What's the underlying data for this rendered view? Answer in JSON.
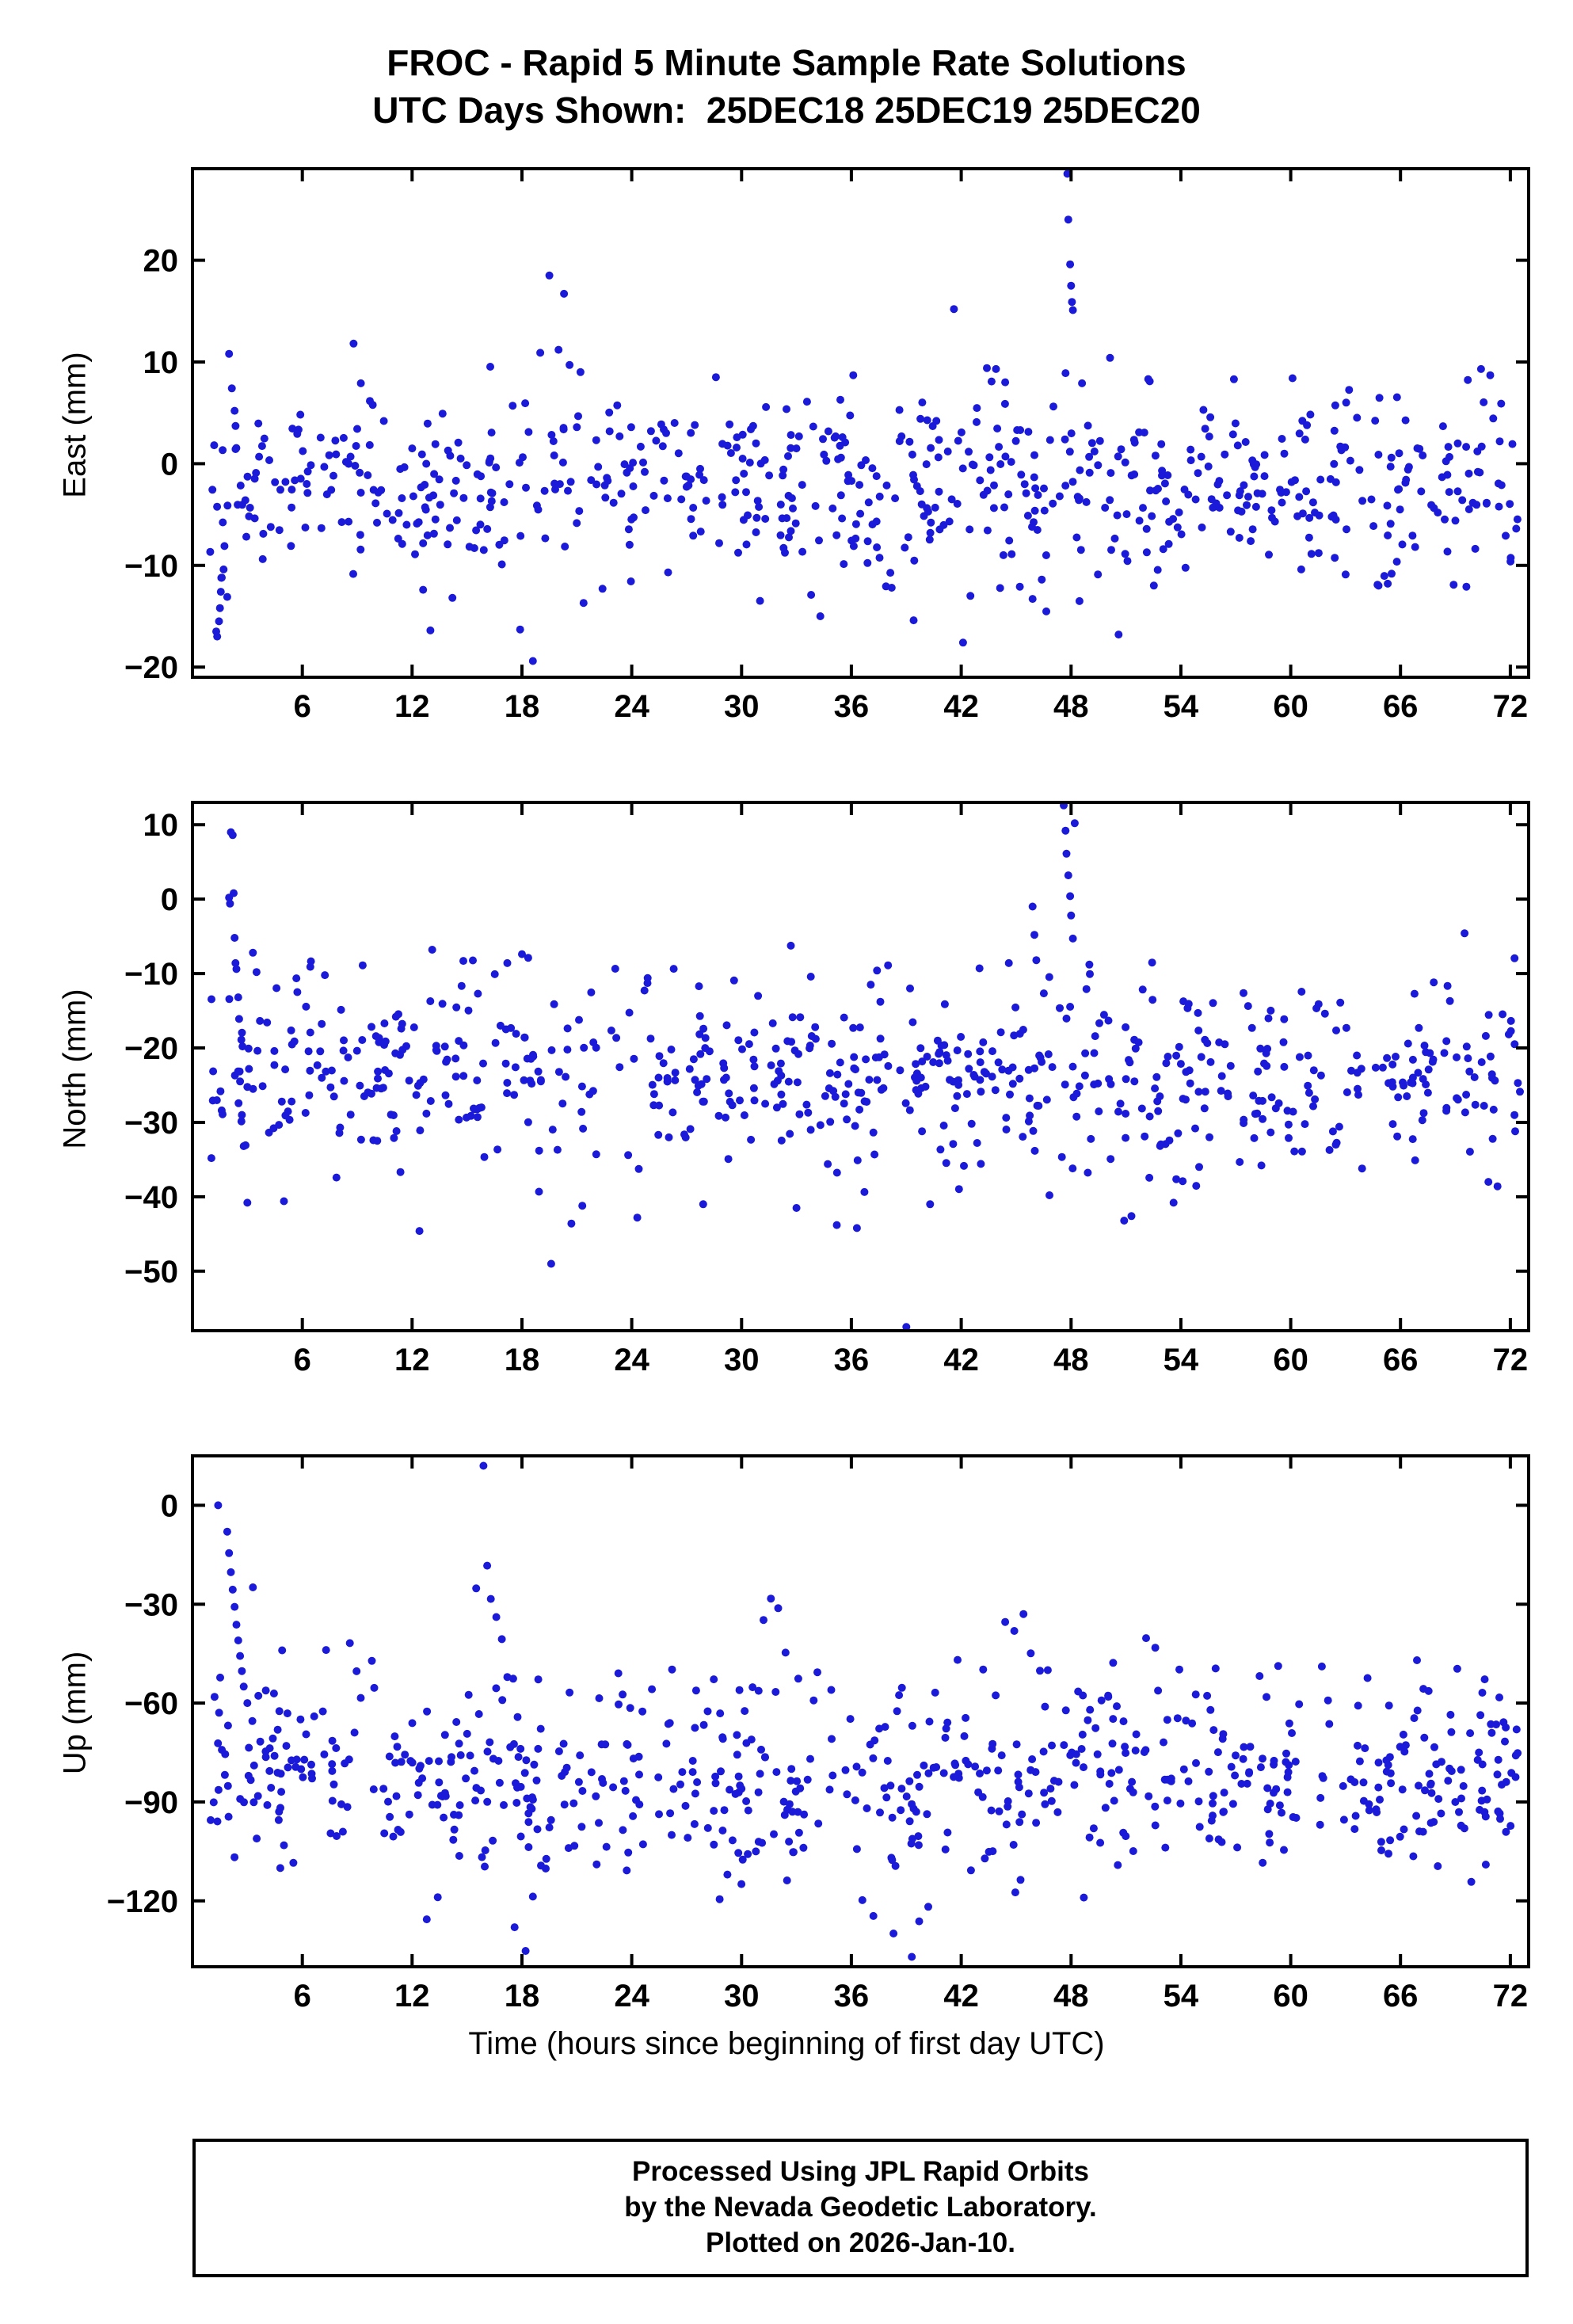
{
  "titles": {
    "line1": "FROC - Rapid 5 Minute Sample Rate Solutions",
    "line2": "UTC Days Shown:  25DEC18 25DEC19 25DEC20"
  },
  "xaxis": {
    "label": "Time (hours since beginning of first day UTC)",
    "ticks": [
      6,
      12,
      18,
      24,
      30,
      36,
      42,
      48,
      54,
      60,
      66,
      72
    ],
    "range": [
      0,
      73
    ]
  },
  "footer": {
    "line1": "Processed Using JPL Rapid Orbits",
    "line2": "by the Nevada Geodetic Laboratory.",
    "line3": "Plotted on 2026-Jan-10."
  },
  "marker": {
    "color": "#1a1ad8",
    "radius": 5
  },
  "chart_data": [
    {
      "type": "scatter",
      "panel": "east",
      "ylabel": "East (mm)",
      "y_range": [
        -21,
        29
      ],
      "y_ticks": [
        -20,
        -10,
        0,
        10,
        20
      ],
      "x_range": [
        0,
        73
      ],
      "x_ticks": [
        6,
        12,
        18,
        24,
        30,
        36,
        42,
        48,
        54,
        60,
        66,
        72
      ],
      "summary": "GPS East component residuals, ~5 min samples over 72 h; bulk of points between -10 and +10 mm around mean -1.8 mm; low streak near hour 2 to -17 mm; spikes to +18.5 near hour 20; large excursion to +28.5 mm near hour 48; low outlier -19.4 at hour 18.6",
      "generator": {
        "seed": 101,
        "n": 660,
        "x_min": 0.9,
        "x_max": 72.6,
        "mean": -1.8,
        "sigma": 4.4,
        "clip": [
          -15,
          11
        ]
      },
      "extra_points": [
        [
          1.3,
          -16.5
        ],
        [
          1.35,
          -17
        ],
        [
          1.45,
          -15.5
        ],
        [
          1.5,
          -14.2
        ],
        [
          1.55,
          -12.6
        ],
        [
          1.6,
          -11.2
        ],
        [
          1.7,
          -10.4
        ],
        [
          1.75,
          -8.1
        ],
        [
          1.9,
          -13.1
        ],
        [
          2.0,
          10.8
        ],
        [
          2.15,
          7.4
        ],
        [
          2.3,
          5.2
        ],
        [
          8.8,
          11.8
        ],
        [
          9.2,
          7.9
        ],
        [
          12.6,
          -12.4
        ],
        [
          13.0,
          -16.4
        ],
        [
          14.2,
          -13.2
        ],
        [
          16.9,
          -9.9
        ],
        [
          17.9,
          -16.3
        ],
        [
          18.6,
          -19.4
        ],
        [
          19.0,
          10.9
        ],
        [
          19.5,
          18.5
        ],
        [
          20.0,
          11.2
        ],
        [
          20.3,
          16.7
        ],
        [
          20.6,
          9.7
        ],
        [
          21.2,
          9.0
        ],
        [
          22.4,
          -12.3
        ],
        [
          28.6,
          8.5
        ],
        [
          33.8,
          -12.9
        ],
        [
          34.3,
          -15.0
        ],
        [
          36.1,
          8.7
        ],
        [
          38.2,
          -12.2
        ],
        [
          39.4,
          -15.4
        ],
        [
          41.6,
          15.2
        ],
        [
          42.1,
          -17.6
        ],
        [
          42.5,
          -13.0
        ],
        [
          43.4,
          9.4
        ],
        [
          43.9,
          9.3
        ],
        [
          44.4,
          8.0
        ],
        [
          45.2,
          -12.1
        ],
        [
          45.9,
          -13.3
        ],
        [
          46.4,
          -11.4
        ],
        [
          47.7,
          8.9
        ],
        [
          47.8,
          28.5
        ],
        [
          47.85,
          24.0
        ],
        [
          47.95,
          19.6
        ],
        [
          48.0,
          17.5
        ],
        [
          48.05,
          15.9
        ],
        [
          48.1,
          15.1
        ],
        [
          48.6,
          7.9
        ],
        [
          50.6,
          -16.8
        ],
        [
          52.3,
          8.1
        ],
        [
          56.9,
          8.3
        ],
        [
          60.1,
          8.4
        ],
        [
          63.0,
          -10.9
        ],
        [
          64.8,
          -12.0
        ],
        [
          65.3,
          -11.8
        ],
        [
          68.9,
          -11.9
        ],
        [
          69.6,
          -12.1
        ],
        [
          70.4,
          9.3
        ],
        [
          70.9,
          8.7
        ],
        [
          71.5,
          5.9
        ]
      ]
    },
    {
      "type": "scatter",
      "panel": "north",
      "ylabel": "North (mm)",
      "y_range": [
        -58,
        13
      ],
      "y_ticks": [
        -50,
        -40,
        -30,
        -20,
        -10,
        0,
        10
      ],
      "x_range": [
        0,
        73
      ],
      "x_ticks": [
        6,
        12,
        18,
        24,
        30,
        36,
        42,
        48,
        54,
        60,
        66,
        72
      ],
      "summary": "GPS North component residuals; bulk between -35 and -10 mm around mean -23.5 mm; vertical streak near hour 2 rising to +9 mm; excursion near hour 48 to +12.6 mm; low outliers -49 at hour 19.6 and -57.5 at hour 39",
      "generator": {
        "seed": 202,
        "n": 660,
        "x_min": 0.9,
        "x_max": 72.6,
        "mean": -23.5,
        "sigma": 6.2,
        "clip": [
          -40,
          -6
        ]
      },
      "extra_points": [
        [
          2.0,
          0.2
        ],
        [
          2.05,
          -0.6
        ],
        [
          2.1,
          9.0
        ],
        [
          2.2,
          8.6
        ],
        [
          2.25,
          0.8
        ],
        [
          2.3,
          -5.2
        ],
        [
          2.35,
          -8.6
        ],
        [
          2.4,
          -9.4
        ],
        [
          2.5,
          -13.2
        ],
        [
          2.55,
          -16.1
        ],
        [
          2.6,
          -24.5
        ],
        [
          2.7,
          -29.0
        ],
        [
          2.8,
          -33.2
        ],
        [
          3.0,
          -40.8
        ],
        [
          3.3,
          -7.2
        ],
        [
          3.5,
          -9.8
        ],
        [
          5.0,
          -40.6
        ],
        [
          9.3,
          -8.9
        ],
        [
          12.4,
          -44.6
        ],
        [
          13.1,
          -6.8
        ],
        [
          14.8,
          -8.3
        ],
        [
          17.2,
          -8.6
        ],
        [
          18.0,
          -7.4
        ],
        [
          19.6,
          -49.0
        ],
        [
          20.7,
          -43.6
        ],
        [
          21.3,
          -41.2
        ],
        [
          24.3,
          -42.8
        ],
        [
          27.9,
          -41.0
        ],
        [
          30.9,
          -13.0
        ],
        [
          33.0,
          -41.5
        ],
        [
          35.2,
          -43.8
        ],
        [
          36.3,
          -44.2
        ],
        [
          37.4,
          -9.6
        ],
        [
          38.0,
          -8.9
        ],
        [
          39.0,
          -57.5
        ],
        [
          40.3,
          -41.0
        ],
        [
          43.0,
          -9.3
        ],
        [
          44.6,
          -8.6
        ],
        [
          45.9,
          -1.0
        ],
        [
          46.0,
          -4.8
        ],
        [
          46.1,
          -8.2
        ],
        [
          47.6,
          12.6
        ],
        [
          47.7,
          9.2
        ],
        [
          47.75,
          6.1
        ],
        [
          47.85,
          3.2
        ],
        [
          47.95,
          0.4
        ],
        [
          48.0,
          -2.2
        ],
        [
          48.1,
          -5.3
        ],
        [
          48.2,
          10.2
        ],
        [
          49.0,
          -8.8
        ],
        [
          50.9,
          -43.2
        ],
        [
          51.3,
          -42.6
        ],
        [
          53.6,
          -40.8
        ],
        [
          54.1,
          -37.9
        ],
        [
          55.0,
          -36.0
        ],
        [
          58.4,
          -35.8
        ],
        [
          60.2,
          -33.9
        ],
        [
          63.9,
          -36.2
        ],
        [
          66.8,
          -35.1
        ],
        [
          69.5,
          -4.6
        ],
        [
          70.8,
          -38.0
        ],
        [
          71.3,
          -38.6
        ]
      ]
    },
    {
      "type": "scatter",
      "panel": "up",
      "ylabel": "Up (mm)",
      "y_range": [
        -140,
        15
      ],
      "y_ticks": [
        -120,
        -90,
        -60,
        -30,
        0
      ],
      "x_range": [
        0,
        73
      ],
      "x_ticks": [
        6,
        12,
        18,
        24,
        30,
        36,
        42,
        48,
        54,
        60,
        66,
        72
      ],
      "summary": "GPS Up component residuals; bulk between -110 and -55 mm around mean -82 mm; streak near hour 2 rising to 0 mm; isolated high of +12 mm near hour 16; deep lows near -135 at hour 18 and -137 at hour 39",
      "generator": {
        "seed": 303,
        "n": 660,
        "x_min": 0.9,
        "x_max": 72.6,
        "mean": -82,
        "sigma": 14,
        "clip": [
          -118,
          -48
        ]
      },
      "extra_points": [
        [
          1.4,
          0.0
        ],
        [
          1.9,
          -8.0
        ],
        [
          2.0,
          -14.5
        ],
        [
          2.1,
          -20.3
        ],
        [
          2.2,
          -25.6
        ],
        [
          2.3,
          -30.8
        ],
        [
          2.4,
          -36.2
        ],
        [
          2.5,
          -41.0
        ],
        [
          2.6,
          -45.7
        ],
        [
          2.7,
          -50.3
        ],
        [
          2.8,
          -55.0
        ],
        [
          3.0,
          -60.0
        ],
        [
          3.3,
          -24.9
        ],
        [
          3.6,
          -57.8
        ],
        [
          4.9,
          -44.0
        ],
        [
          7.3,
          -43.9
        ],
        [
          8.6,
          -41.8
        ],
        [
          9.8,
          -47.2
        ],
        [
          12.8,
          -125.6
        ],
        [
          13.4,
          -118.9
        ],
        [
          15.5,
          -25.2
        ],
        [
          15.9,
          12.0
        ],
        [
          16.1,
          -18.3
        ],
        [
          16.3,
          -28.4
        ],
        [
          16.6,
          -33.9
        ],
        [
          16.9,
          -40.6
        ],
        [
          17.2,
          -52.1
        ],
        [
          17.6,
          -128.0
        ],
        [
          18.2,
          -135.2
        ],
        [
          18.6,
          -118.7
        ],
        [
          19.3,
          -110.2
        ],
        [
          20.6,
          -56.8
        ],
        [
          23.5,
          -57.4
        ],
        [
          26.2,
          -49.8
        ],
        [
          28.8,
          -119.5
        ],
        [
          30.6,
          -55.2
        ],
        [
          31.2,
          -34.8
        ],
        [
          31.6,
          -28.3
        ],
        [
          32.0,
          -31.2
        ],
        [
          32.4,
          -44.7
        ],
        [
          33.1,
          -52.6
        ],
        [
          34.9,
          -56.0
        ],
        [
          36.6,
          -119.8
        ],
        [
          37.2,
          -124.6
        ],
        [
          38.3,
          -129.9
        ],
        [
          39.3,
          -137.0
        ],
        [
          39.7,
          -126.2
        ],
        [
          40.2,
          -121.8
        ],
        [
          41.8,
          -46.9
        ],
        [
          43.2,
          -49.8
        ],
        [
          44.4,
          -35.4
        ],
        [
          44.9,
          -38.1
        ],
        [
          45.4,
          -33.0
        ],
        [
          45.8,
          -44.9
        ],
        [
          46.3,
          -50.2
        ],
        [
          48.7,
          -119.0
        ],
        [
          50.3,
          -47.8
        ],
        [
          52.1,
          -40.3
        ],
        [
          52.6,
          -43.2
        ],
        [
          55.9,
          -49.5
        ],
        [
          58.3,
          -51.8
        ],
        [
          61.7,
          -48.9
        ],
        [
          64.2,
          -52.4
        ],
        [
          66.9,
          -47.0
        ],
        [
          69.1,
          -49.6
        ],
        [
          70.6,
          -52.8
        ],
        [
          71.4,
          -58.3
        ]
      ]
    }
  ]
}
